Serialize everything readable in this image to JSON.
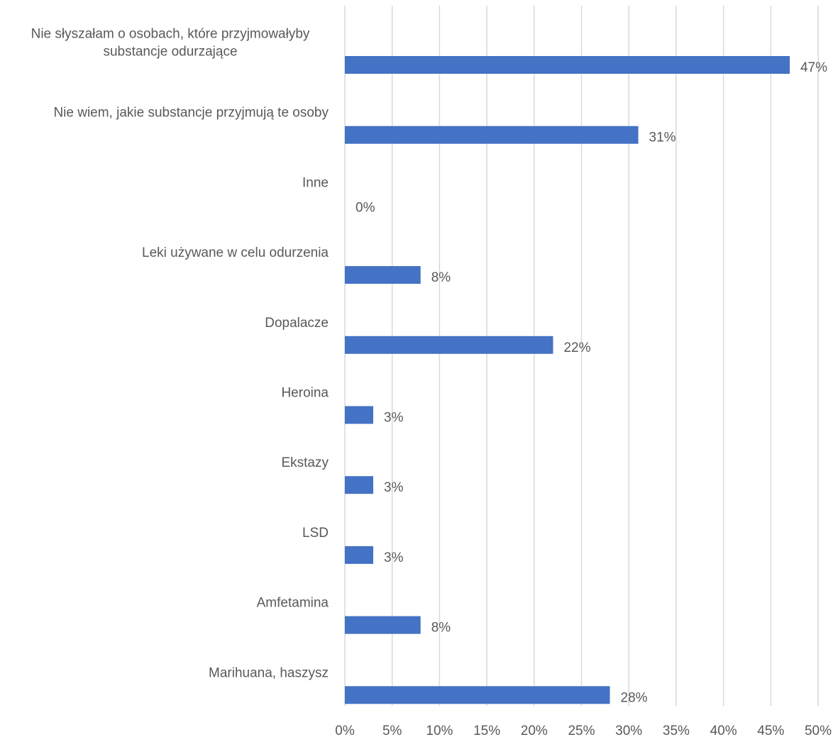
{
  "chart_data": {
    "type": "bar",
    "orientation": "horizontal",
    "categories": [
      [
        "Nie słyszałam o osobach, które przyjmowałyby",
        "substancje odurzające"
      ],
      [
        "Nie wiem, jakie substancje przyjmują te osoby"
      ],
      [
        "Inne"
      ],
      [
        "Leki używane w celu odurzenia"
      ],
      [
        "Dopalacze"
      ],
      [
        "Heroina"
      ],
      [
        "Ekstazy"
      ],
      [
        "LSD"
      ],
      [
        "Amfetamina"
      ],
      [
        "Marihuana, haszysz"
      ]
    ],
    "values": [
      47,
      31,
      0,
      8,
      22,
      3,
      3,
      3,
      8,
      28
    ],
    "data_labels": [
      "47%",
      "31%",
      "0%",
      "8%",
      "22%",
      "3%",
      "3%",
      "3%",
      "8%",
      "28%"
    ],
    "x_ticks": [
      "0%",
      "5%",
      "10%",
      "15%",
      "20%",
      "25%",
      "30%",
      "35%",
      "40%",
      "45%",
      "50%"
    ],
    "xlim": [
      0,
      50
    ],
    "grid": true,
    "legend": "none",
    "colors": {
      "bar": "#4472c4",
      "grid": "#d9d9d9",
      "text": "#595959"
    }
  }
}
